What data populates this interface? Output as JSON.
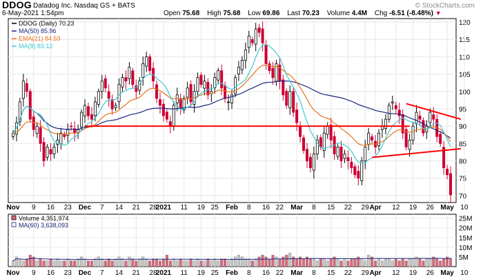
{
  "header": {
    "symbol": "DDOG",
    "company": "Datadog Inc.  Nasdaq GS + BATS",
    "datetime": "6-May-2021 1:54pm",
    "watermark": "© StockCharts.com",
    "open_label": "Open",
    "open": "75.68",
    "high_label": "High",
    "high": "75.68",
    "low_label": "Low",
    "low": "69.86",
    "last_label": "Last",
    "last": "70.23",
    "volume_label": "Volume",
    "volume": "4.4M",
    "chg_label": "Chg",
    "chg": "-6.51 (-8.48%)",
    "chg_arrow": "▼"
  },
  "legend": {
    "price": "DDOG (Daily) 70.23",
    "ma50": "MA(50) 85.96",
    "ema21": "EMA(21) 84.59",
    "ma8": "MA(8) 83.12"
  },
  "volume_legend": {
    "volume": "Volume 4,351,974",
    "ma60": "MA(60) 3,638,093"
  },
  "colors": {
    "up": "#000000",
    "down": "#cc0033",
    "ma50": "#1a237e",
    "ema21": "#e8731c",
    "ma8": "#3ec8d0",
    "trend": "#ff0000",
    "vol_up": "#c8c8c8",
    "vol_down": "#d96a7a"
  },
  "chart_data": {
    "type": "candlestick",
    "title": "DDOG (Daily)",
    "ylim": [
      68,
      121
    ],
    "price_ticks": [
      70,
      75,
      80,
      85,
      90,
      95,
      100,
      105,
      110,
      115,
      120
    ],
    "volume_ticks": [
      "5M",
      "10M",
      "15M",
      "20M",
      "25M"
    ],
    "volume_ylim": [
      0,
      27000000
    ],
    "x_tick_labels": [
      {
        "label": "Nov",
        "i": 0,
        "bold": true
      },
      {
        "label": "9",
        "i": 6
      },
      {
        "label": "16",
        "i": 11
      },
      {
        "label": "23",
        "i": 16
      },
      {
        "label": "Dec",
        "i": 21,
        "bold": true
      },
      {
        "label": "7",
        "i": 26
      },
      {
        "label": "14",
        "i": 31
      },
      {
        "label": "21",
        "i": 36
      },
      {
        "label": "28",
        "i": 41
      },
      {
        "label": "2021",
        "i": 44,
        "bold": true
      },
      {
        "label": "11",
        "i": 50
      },
      {
        "label": "19",
        "i": 55
      },
      {
        "label": "25",
        "i": 59
      },
      {
        "label": "Feb",
        "i": 64,
        "bold": true
      },
      {
        "label": "8",
        "i": 69
      },
      {
        "label": "16",
        "i": 74
      },
      {
        "label": "22",
        "i": 78
      },
      {
        "label": "Mar",
        "i": 83,
        "bold": true
      },
      {
        "label": "8",
        "i": 88
      },
      {
        "label": "15",
        "i": 93
      },
      {
        "label": "22",
        "i": 98
      },
      {
        "label": "29",
        "i": 103
      },
      {
        "label": "Apr",
        "i": 106,
        "bold": true
      },
      {
        "label": "12",
        "i": 112
      },
      {
        "label": "19",
        "i": 117
      },
      {
        "label": "26",
        "i": 122
      },
      {
        "label": "May",
        "i": 127,
        "bold": true
      },
      {
        "label": "10",
        "i": 132
      }
    ],
    "closes": [
      88,
      91,
      97,
      103,
      100,
      92,
      89,
      90,
      85,
      80,
      84,
      82,
      84,
      86,
      88,
      87,
      89,
      90,
      88,
      89,
      94,
      96,
      93,
      92,
      97,
      100,
      103,
      101,
      98,
      95,
      96,
      102,
      104,
      103,
      107,
      102,
      100,
      103,
      108,
      110,
      106,
      103,
      98,
      96,
      93,
      92,
      90,
      96,
      99,
      95,
      98,
      101,
      97,
      100,
      104,
      102,
      103,
      99,
      100,
      104,
      106,
      101,
      98,
      97,
      99,
      104,
      107,
      109,
      112,
      116,
      114,
      118,
      117,
      114,
      108,
      106,
      104,
      108,
      103,
      99,
      96,
      100,
      94,
      91,
      87,
      83,
      80,
      78,
      82,
      86,
      84,
      88,
      90,
      86,
      82,
      84,
      80,
      82,
      80,
      78,
      76,
      75,
      80,
      84,
      88,
      86,
      84,
      88,
      90,
      92,
      96,
      97,
      95,
      93,
      88,
      84,
      86,
      90,
      94,
      92,
      88,
      90,
      94,
      92,
      87,
      85,
      78,
      76,
      70.23
    ],
    "volumes_millions": [
      3,
      5,
      4,
      3,
      4,
      6,
      5,
      3,
      4,
      3,
      3,
      4,
      3,
      4,
      3,
      3,
      4,
      3,
      3,
      4,
      5,
      4,
      3,
      3,
      4,
      5,
      4,
      3,
      4,
      3,
      4,
      5,
      4,
      3,
      5,
      4,
      3,
      4,
      5,
      4,
      3,
      4,
      4,
      3,
      4,
      6,
      3,
      4,
      3,
      4,
      3,
      3,
      4,
      3,
      4,
      3,
      3,
      4,
      3,
      4,
      3,
      4,
      4,
      3,
      4,
      5,
      6,
      5,
      4,
      4,
      3,
      4,
      5,
      6,
      5,
      4,
      6,
      5,
      4,
      5,
      6,
      7,
      5,
      4,
      5,
      4,
      5,
      4,
      4,
      3,
      4,
      4,
      3,
      4,
      5,
      4,
      3,
      4,
      3,
      4,
      4,
      5,
      4,
      3,
      6,
      5,
      3,
      4,
      3,
      4,
      4,
      3,
      4,
      3,
      4,
      3,
      4,
      4,
      5,
      4,
      3,
      4,
      4,
      5,
      4,
      3,
      4,
      5,
      4.35
    ],
    "trendlines": [
      {
        "name": "support",
        "from": {
          "i": 21,
          "v": 90
        },
        "to": {
          "i": 116,
          "v": 90
        }
      },
      {
        "name": "upper-wedge",
        "from": {
          "i": 115,
          "v": 96.5
        },
        "to": {
          "i": 131,
          "v": 92
        }
      },
      {
        "name": "lower-wedge",
        "from": {
          "i": 105,
          "v": 81
        },
        "to": {
          "i": 131,
          "v": 83.5
        }
      }
    ]
  }
}
